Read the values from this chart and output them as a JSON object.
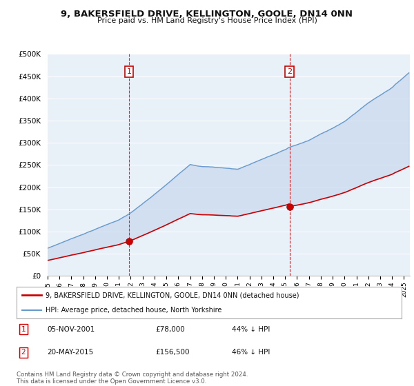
{
  "title": "9, BAKERSFIELD DRIVE, KELLINGTON, GOOLE, DN14 0NN",
  "subtitle": "Price paid vs. HM Land Registry's House Price Index (HPI)",
  "ylim": [
    0,
    500000
  ],
  "yticks": [
    0,
    50000,
    100000,
    150000,
    200000,
    250000,
    300000,
    350000,
    400000,
    450000,
    500000
  ],
  "ytick_labels": [
    "£0",
    "£50K",
    "£100K",
    "£150K",
    "£200K",
    "£250K",
    "£300K",
    "£350K",
    "£400K",
    "£450K",
    "£500K"
  ],
  "xlim_start": 1995.0,
  "xlim_end": 2025.5,
  "bg_color": "#ffffff",
  "plot_bg_color": "#e8f0f8",
  "grid_color": "#ffffff",
  "hpi_color": "#6699cc",
  "price_color": "#cc0000",
  "vline_color": "#cc0000",
  "fill_color": "#c8d8ee",
  "marker1_x": 2001.85,
  "marker1_y": 78000,
  "marker2_x": 2015.38,
  "marker2_y": 156500,
  "sale1_date": "05-NOV-2001",
  "sale1_price": "£78,000",
  "sale1_note": "44% ↓ HPI",
  "sale2_date": "20-MAY-2015",
  "sale2_price": "£156,500",
  "sale2_note": "46% ↓ HPI",
  "legend_line1": "9, BAKERSFIELD DRIVE, KELLINGTON, GOOLE, DN14 0NN (detached house)",
  "legend_line2": "HPI: Average price, detached house, North Yorkshire",
  "footnote": "Contains HM Land Registry data © Crown copyright and database right 2024.\nThis data is licensed under the Open Government Licence v3.0."
}
